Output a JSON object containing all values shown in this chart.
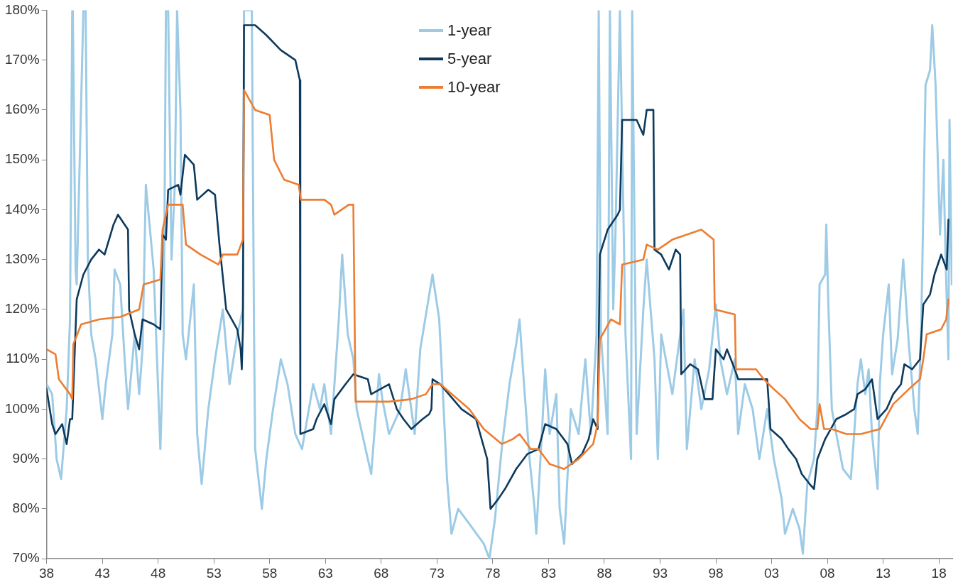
{
  "chart_data": {
    "type": "line",
    "xlim": [
      1938,
      2019.2
    ],
    "ylim": [
      70,
      180
    ],
    "xticks": [
      {
        "value": 1938,
        "label": "38"
      },
      {
        "value": 1943,
        "label": "43"
      },
      {
        "value": 1948,
        "label": "48"
      },
      {
        "value": 1953,
        "label": "53"
      },
      {
        "value": 1958,
        "label": "58"
      },
      {
        "value": 1963,
        "label": "63"
      },
      {
        "value": 1968,
        "label": "68"
      },
      {
        "value": 1973,
        "label": "73"
      },
      {
        "value": 1978,
        "label": "78"
      },
      {
        "value": 1983,
        "label": "83"
      },
      {
        "value": 1988,
        "label": "88"
      },
      {
        "value": 1993,
        "label": "93"
      },
      {
        "value": 1998,
        "label": "98"
      },
      {
        "value": 2003,
        "label": "03"
      },
      {
        "value": 2008,
        "label": "08"
      },
      {
        "value": 2013,
        "label": "13"
      },
      {
        "value": 2018,
        "label": "18"
      }
    ],
    "yticks": [
      {
        "value": 70,
        "label": "70%"
      },
      {
        "value": 80,
        "label": "80%"
      },
      {
        "value": 90,
        "label": "90%"
      },
      {
        "value": 100,
        "label": "100%"
      },
      {
        "value": 110,
        "label": "110%"
      },
      {
        "value": 120,
        "label": "120%"
      },
      {
        "value": 130,
        "label": "130%"
      },
      {
        "value": 140,
        "label": "140%"
      },
      {
        "value": 150,
        "label": "150%"
      },
      {
        "value": 160,
        "label": "160%"
      },
      {
        "value": 170,
        "label": "170%"
      },
      {
        "value": 180,
        "label": "180%"
      }
    ],
    "grid": false,
    "legend": "top",
    "marker": "none",
    "line_style": "solid",
    "series": [
      {
        "name": "1-year",
        "color": "#9dcbe6",
        "x": [
          1938.0,
          1938.5,
          1938.9,
          1939.3,
          1939.8,
          1940.1,
          1940.3,
          1940.35,
          1940.6,
          1940.7,
          1941.3,
          1941.5,
          1941.7,
          1942.0,
          1942.4,
          1943.0,
          1943.3,
          1943.9,
          1944.1,
          1944.6,
          1945.0,
          1945.3,
          1945.9,
          1946.3,
          1946.6,
          1946.9,
          1947.6,
          1947.9,
          1948.2,
          1948.5,
          1948.7,
          1948.9,
          1949.2,
          1949.5,
          1949.7,
          1950.0,
          1950.2,
          1950.5,
          1951.2,
          1951.5,
          1951.9,
          1952.5,
          1953.1,
          1953.8,
          1954.4,
          1955.1,
          1955.6,
          1955.7,
          1956.4,
          1956.6,
          1956.7,
          1957.3,
          1957.7,
          1958.3,
          1959.0,
          1959.6,
          1960.3,
          1960.9,
          1961.9,
          1962.5,
          1962.9,
          1963.5,
          1964.2,
          1964.5,
          1965.0,
          1965.5,
          1965.8,
          1966.5,
          1967.1,
          1967.8,
          1968.1,
          1968.7,
          1969.7,
          1970.2,
          1970.7,
          1971.0,
          1971.5,
          1972.6,
          1973.2,
          1973.6,
          1973.9,
          1974.3,
          1974.9,
          1975.9,
          1977.2,
          1977.7,
          1978.2,
          1978.8,
          1979.5,
          1980.1,
          1980.4,
          1980.8,
          1981.3,
          1981.75,
          1981.9,
          1982.4,
          1982.7,
          1983.1,
          1983.7,
          1984.0,
          1984.4,
          1985.0,
          1985.7,
          1986.3,
          1986.8,
          1987.3,
          1987.5,
          1987.7,
          1988.3,
          1988.5,
          1988.8,
          1989.0,
          1989.4,
          1989.9,
          1990.4,
          1990.5,
          1990.9,
          1991.5,
          1991.8,
          1992.5,
          1992.8,
          1993.1,
          1994.1,
          1995.1,
          1995.4,
          1996.1,
          1996.7,
          1997.4,
          1998.0,
          1998.4,
          1999.0,
          1999.7,
          2000.0,
          2000.6,
          2001.3,
          2001.9,
          2002.6,
          2003.2,
          2003.9,
          2004.2,
          2004.9,
          2005.5,
          2005.8,
          2006.2,
          2006.8,
          2007.1,
          2007.3,
          2007.8,
          2007.9,
          2008.1,
          2008.4,
          2008.8,
          2009.4,
          2010.1,
          2010.4,
          2010.7,
          2011.0,
          2011.4,
          2011.7,
          2012.0,
          2012.5,
          2012.7,
          2013.0,
          2013.5,
          2013.8,
          2014.3,
          2014.8,
          2015.3,
          2015.8,
          2016.1,
          2016.4,
          2016.8,
          2017.2,
          2017.4,
          2017.7,
          2018.1,
          2018.4,
          2018.6,
          2018.85,
          2018.95,
          2019.15
        ],
        "values": [
          105,
          103,
          90,
          86,
          100,
          118,
          180,
          180,
          128,
          125,
          180,
          180,
          130,
          115,
          110,
          98,
          105,
          115,
          128,
          125,
          110,
          100,
          115,
          103,
          112,
          145,
          128,
          110,
          92,
          115,
          180,
          180,
          130,
          145,
          180,
          160,
          115,
          110,
          125,
          95,
          85,
          100,
          110,
          120,
          105,
          115,
          120,
          180,
          180,
          115,
          92,
          80,
          90,
          100,
          110,
          105,
          95,
          92,
          105,
          100,
          105,
          95,
          118,
          131,
          115,
          110,
          100,
          93,
          87,
          107,
          102,
          95,
          100,
          108,
          100,
          95,
          112,
          127,
          118,
          100,
          86,
          75,
          80,
          77,
          73,
          70,
          78,
          92,
          105,
          113,
          118,
          105,
          90,
          80,
          75,
          95,
          108,
          95,
          103,
          80,
          73,
          100,
          95,
          110,
          95,
          115,
          180,
          115,
          95,
          180,
          120,
          135,
          180,
          115,
          90,
          180,
          95,
          120,
          130,
          110,
          90,
          115,
          103,
          120,
          92,
          110,
          100,
          108,
          121,
          110,
          103,
          110,
          95,
          105,
          100,
          90,
          100,
          90,
          82,
          75,
          80,
          76,
          71,
          85,
          90,
          100,
          125,
          127,
          137,
          120,
          100,
          95,
          88,
          86,
          95,
          105,
          110,
          103,
          108,
          95,
          84,
          105,
          115,
          125,
          107,
          114,
          130,
          113,
          100,
          95,
          115,
          165,
          168,
          177,
          165,
          135,
          150,
          130,
          110,
          158,
          125
        ]
      },
      {
        "name": "5-year",
        "color": "#0d3a5c",
        "x": [
          1938.0,
          1938.5,
          1938.8,
          1939.4,
          1939.8,
          1940.1,
          1940.3,
          1940.5,
          1940.7,
          1941.3,
          1942.0,
          1942.7,
          1943.2,
          1944.0,
          1944.4,
          1945.0,
          1945.3,
          1945.4,
          1945.9,
          1946.3,
          1946.6,
          1947.6,
          1948.2,
          1948.4,
          1948.7,
          1948.9,
          1949.8,
          1950.0,
          1950.4,
          1951.2,
          1951.5,
          1952.5,
          1953.1,
          1953.5,
          1954.1,
          1955.1,
          1955.4,
          1955.5,
          1955.6,
          1955.7,
          1956.7,
          1957.7,
          1959.0,
          1960.3,
          1960.7,
          1960.75,
          1961.9,
          1962.2,
          1962.9,
          1963.5,
          1963.8,
          1964.8,
          1965.5,
          1966.8,
          1967.1,
          1968.7,
          1969.4,
          1970.0,
          1970.7,
          1971.7,
          1972.3,
          1972.5,
          1972.6,
          1973.3,
          1975.2,
          1976.5,
          1977.5,
          1977.8,
          1978.5,
          1979.1,
          1980.1,
          1981.1,
          1982.1,
          1982.7,
          1983.7,
          1984.7,
          1985.1,
          1986.0,
          1986.6,
          1987.0,
          1987.4,
          1987.6,
          1988.3,
          1989.2,
          1989.4,
          1989.6,
          1990.9,
          1991.5,
          1991.8,
          1992.4,
          1992.5,
          1993.1,
          1993.8,
          1994.4,
          1994.8,
          1994.9,
          1995.7,
          1996.4,
          1997.0,
          1997.7,
          1998.0,
          1998.7,
          1999.0,
          1999.7,
          2000.0,
          2002.6,
          2002.9,
          2003.9,
          2004.5,
          2005.2,
          2005.7,
          2006.4,
          2006.8,
          2007.1,
          2007.8,
          2008.8,
          2009.7,
          2010.4,
          2010.7,
          2011.4,
          2012.0,
          2012.5,
          2013.3,
          2013.9,
          2014.6,
          2014.9,
          2015.6,
          2016.3,
          2016.6,
          2017.2,
          2017.6,
          2018.2,
          2018.7,
          2018.85
        ],
        "values": [
          104,
          97,
          95,
          97,
          93,
          98,
          98,
          110,
          122,
          127,
          130,
          132,
          131,
          137,
          139,
          137,
          136,
          120,
          115,
          112,
          118,
          117,
          116,
          135,
          134,
          144,
          145,
          143,
          151,
          149,
          142,
          144,
          143,
          133,
          120,
          116,
          112,
          108,
          116,
          177,
          177,
          175,
          172,
          170,
          166,
          95,
          96,
          98,
          101,
          97,
          102,
          105,
          107,
          106,
          103,
          105,
          100,
          98,
          96,
          98,
          99,
          100,
          106,
          105,
          100,
          98,
          90,
          80,
          82,
          84,
          88,
          91,
          92,
          97,
          96,
          93,
          89,
          91,
          94,
          98,
          96,
          131,
          136,
          139,
          140,
          158,
          158,
          155,
          160,
          160,
          132,
          131,
          128,
          132,
          131,
          107,
          109,
          108,
          102,
          102,
          112,
          110,
          112,
          108,
          106,
          106,
          96,
          94,
          92,
          90,
          87,
          85,
          84,
          90,
          94,
          98,
          99,
          100,
          103,
          104,
          106,
          98,
          100,
          103,
          105,
          109,
          108,
          110,
          121,
          123,
          127,
          131,
          128,
          138
        ]
      },
      {
        "name": "10-year",
        "color": "#ed7d31",
        "x": [
          1938.0,
          1938.8,
          1939.1,
          1940.1,
          1940.3,
          1940.4,
          1941.1,
          1942.7,
          1944.6,
          1946.3,
          1946.7,
          1948.2,
          1948.4,
          1948.9,
          1950.2,
          1950.5,
          1951.8,
          1953.4,
          1953.8,
          1955.1,
          1955.6,
          1955.7,
          1956.7,
          1958.0,
          1958.4,
          1959.3,
          1960.6,
          1960.8,
          1962.9,
          1963.5,
          1963.8,
          1965.1,
          1965.5,
          1965.7,
          1968.7,
          1970.7,
          1972.0,
          1972.6,
          1973.3,
          1975.9,
          1977.2,
          1978.8,
          1979.8,
          1980.4,
          1981.4,
          1982.1,
          1983.1,
          1984.4,
          1985.7,
          1987.0,
          1987.4,
          1987.6,
          1988.6,
          1989.4,
          1989.6,
          1991.5,
          1991.8,
          1992.8,
          1994.1,
          1996.7,
          1997.8,
          1997.9,
          1999.7,
          1999.8,
          2001.6,
          2002.3,
          2003.2,
          2004.2,
          2005.5,
          2006.5,
          2007.1,
          2007.3,
          2007.7,
          2008.4,
          2009.7,
          2011.0,
          2012.7,
          2013.9,
          2015.3,
          2016.3,
          2016.6,
          2016.9,
          2018.2,
          2018.65,
          2018.85
        ],
        "values": [
          112,
          111,
          106,
          103,
          102,
          113,
          117,
          118,
          118.5,
          120,
          125,
          126,
          136,
          141,
          141,
          133,
          131,
          129,
          131,
          131,
          134,
          164,
          160,
          159,
          150,
          146,
          145,
          142,
          142,
          141,
          139,
          141,
          141,
          101.5,
          101.5,
          102,
          103,
          105,
          105,
          100,
          96,
          93,
          94,
          95,
          92,
          92,
          89,
          88,
          90,
          93,
          97,
          114,
          118,
          117,
          129,
          130,
          133,
          132,
          134,
          136,
          134,
          120,
          119,
          108,
          108,
          106,
          104,
          102,
          98,
          96,
          96,
          101,
          96,
          96,
          95,
          95,
          96,
          101,
          104,
          106,
          110,
          115,
          116,
          118,
          122
        ]
      }
    ]
  }
}
